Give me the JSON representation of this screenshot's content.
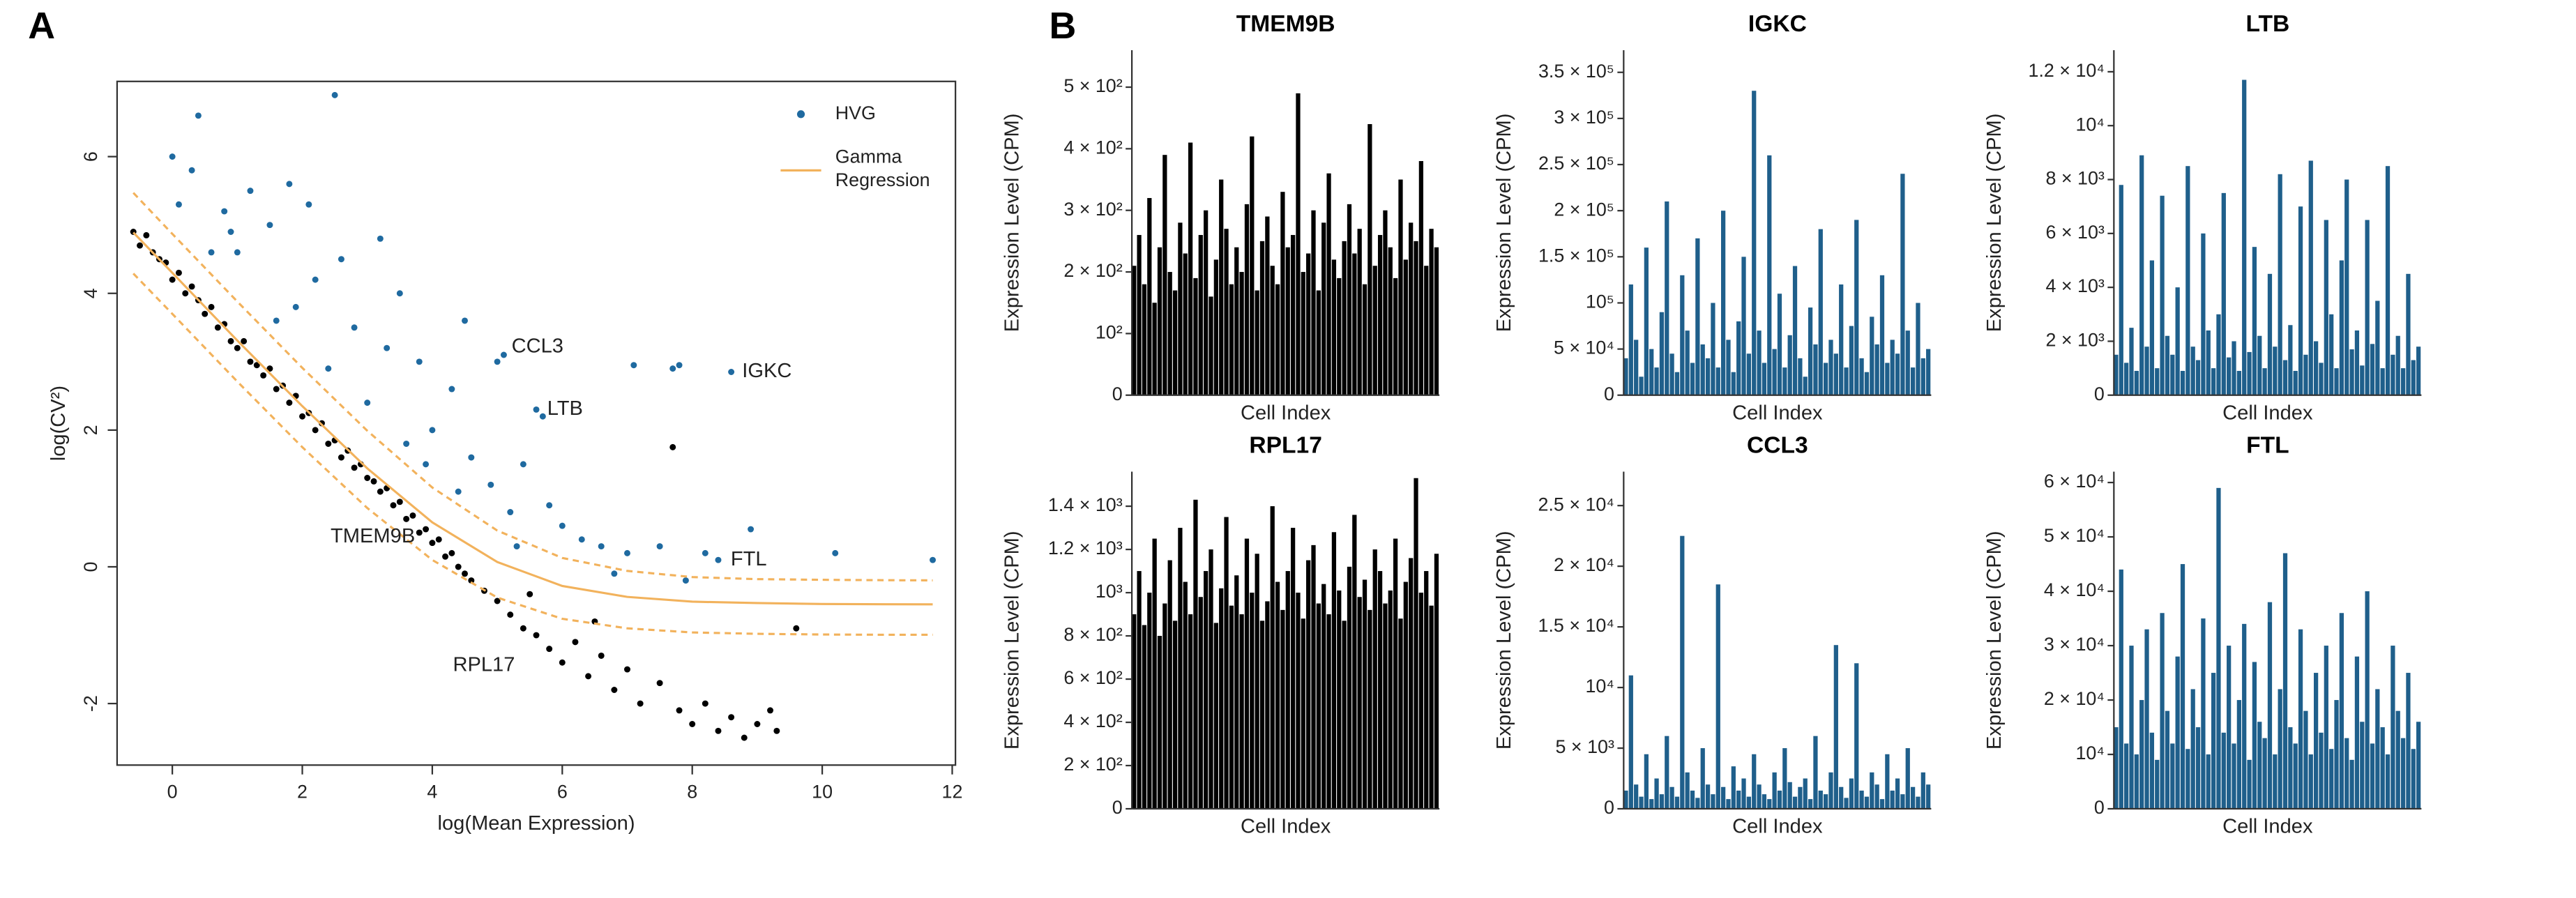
{
  "panels": [
    "A",
    "B"
  ],
  "chart_data": [
    {
      "type": "scatter",
      "xlabel": "log(Mean Expression)",
      "ylabel": "log(CV²)",
      "xlim": [
        -0.85,
        12.05
      ],
      "ylim": [
        -2.9,
        7.1
      ],
      "xticks": [
        0,
        2,
        4,
        6,
        8,
        10,
        12
      ],
      "yticks": [
        -2,
        0,
        2,
        4,
        6
      ],
      "legend": "top-right",
      "series": [
        {
          "name": "HVG",
          "color": "#1f6aa0",
          "x": [
            0.4,
            2.5,
            0.0,
            0.3,
            1.2,
            1.8,
            2.1,
            0.8,
            1.5,
            3.2,
            1.0,
            2.6,
            2.2,
            3.5,
            0.6,
            1.9,
            2.8,
            3.3,
            3.8,
            4.5,
            4.3,
            5.0,
            5.1,
            7.1,
            7.7,
            7.8,
            8.6,
            5.6,
            5.7,
            4.0,
            4.6,
            3.6,
            4.9,
            5.4,
            5.8,
            6.0,
            6.3,
            6.6,
            4.4,
            5.2,
            7.0,
            7.5,
            8.2,
            8.4,
            8.9,
            10.2,
            11.7,
            3.0,
            2.4,
            1.6,
            0.9,
            0.1,
            3.9,
            5.3,
            6.8,
            7.9
          ],
          "y": [
            6.6,
            6.9,
            6.0,
            5.8,
            5.5,
            5.6,
            5.3,
            5.2,
            5.0,
            4.8,
            4.6,
            4.5,
            4.2,
            4.0,
            4.6,
            3.8,
            3.5,
            3.2,
            3.0,
            3.6,
            2.6,
            3.0,
            3.1,
            2.95,
            2.9,
            2.95,
            2.85,
            2.3,
            2.2,
            2.0,
            1.6,
            1.8,
            1.2,
            1.5,
            0.9,
            0.6,
            0.4,
            0.3,
            1.1,
            0.8,
            0.2,
            0.3,
            0.2,
            0.1,
            0.55,
            0.2,
            0.1,
            2.4,
            2.9,
            3.6,
            4.9,
            5.3,
            1.5,
            0.3,
            -0.1,
            -0.2
          ]
        },
        {
          "color": "#000000",
          "x": [
            -0.6,
            -0.5,
            -0.4,
            -0.3,
            -0.2,
            -0.1,
            0,
            0.1,
            0.2,
            0.3,
            0.4,
            0.5,
            0.6,
            0.7,
            0.8,
            0.9,
            1.0,
            1.1,
            1.2,
            1.3,
            1.4,
            1.5,
            1.6,
            1.7,
            1.8,
            1.9,
            2.0,
            2.1,
            2.2,
            2.3,
            2.4,
            2.5,
            2.6,
            2.7,
            2.8,
            2.9,
            3.0,
            3.1,
            3.2,
            3.3,
            3.4,
            3.5,
            3.6,
            3.7,
            3.8,
            3.9,
            4.0,
            4.1,
            4.2,
            4.3,
            4.4,
            4.5,
            4.6,
            4.8,
            5.0,
            5.2,
            5.4,
            5.6,
            5.8,
            6.0,
            6.2,
            6.4,
            6.6,
            6.8,
            7.0,
            7.2,
            7.5,
            7.8,
            8.0,
            8.2,
            8.4,
            8.6,
            8.8,
            9.0,
            9.2,
            9.3,
            7.7,
            9.6,
            5.5,
            6.5
          ],
          "y": [
            4.9,
            4.7,
            4.85,
            4.6,
            4.5,
            4.45,
            4.2,
            4.3,
            4.0,
            4.1,
            3.9,
            3.7,
            3.8,
            3.5,
            3.55,
            3.3,
            3.2,
            3.3,
            3.0,
            2.95,
            2.8,
            2.9,
            2.6,
            2.65,
            2.4,
            2.5,
            2.2,
            2.25,
            2.0,
            2.1,
            1.8,
            1.85,
            1.6,
            1.7,
            1.45,
            1.5,
            1.3,
            1.25,
            1.1,
            1.15,
            0.9,
            0.95,
            0.7,
            0.75,
            0.5,
            0.55,
            0.35,
            0.4,
            0.15,
            0.2,
            0.0,
            -0.1,
            -0.2,
            -0.35,
            -0.5,
            -0.7,
            -0.9,
            -1.0,
            -1.2,
            -1.4,
            -1.1,
            -1.6,
            -1.3,
            -1.8,
            -1.5,
            -2.0,
            -1.7,
            -2.1,
            -2.3,
            -2.0,
            -2.4,
            -2.2,
            -2.5,
            -2.3,
            -2.1,
            -2.4,
            1.75,
            -0.9,
            -0.4,
            -0.8
          ]
        },
        {
          "name": "Gamma Regression",
          "type": "line",
          "color": "#f2b25c",
          "x": [
            -0.6,
            0,
            1,
            2,
            3,
            4,
            5,
            6,
            7,
            8,
            9,
            10,
            11,
            11.7
          ],
          "y": [
            4.89,
            4.3,
            3.31,
            2.35,
            1.44,
            0.65,
            0.07,
            -0.28,
            -0.44,
            -0.51,
            -0.53,
            -0.544,
            -0.548,
            -0.549
          ]
        },
        {
          "type": "line",
          "dashed": true,
          "color": "#f2b25c",
          "x": [
            -0.6,
            0,
            1,
            2,
            3,
            4,
            5,
            6,
            7,
            8,
            9,
            10,
            11,
            11.7
          ],
          "y": [
            5.47,
            4.87,
            3.88,
            2.91,
            1.99,
            1.16,
            0.53,
            0.13,
            -0.06,
            -0.15,
            -0.18,
            -0.19,
            -0.196,
            -0.198
          ]
        },
        {
          "type": "line",
          "dashed": true,
          "color": "#f2b25c",
          "x": [
            -0.6,
            0,
            1,
            2,
            3,
            4,
            5,
            6,
            7,
            8,
            9,
            10,
            11,
            11.7
          ],
          "y": [
            4.29,
            3.7,
            2.71,
            1.75,
            0.86,
            0.1,
            -0.45,
            -0.76,
            -0.9,
            -0.96,
            -0.98,
            -0.99,
            -0.994,
            -0.994
          ]
        }
      ],
      "annotations": [
        {
          "text": "CCL3",
          "x": 5.1,
          "y": 3.1
        },
        {
          "text": "IGKC",
          "x": 8.6,
          "y": 2.85
        },
        {
          "text": "LTB",
          "x": 5.6,
          "y": 2.3
        },
        {
          "text": "FTL",
          "x": 8.4,
          "y": 0.1
        },
        {
          "text": "TMEM9B",
          "x": 4.6,
          "y": 0.3
        },
        {
          "text": "RPL17",
          "x": 5.8,
          "y": -0.9
        }
      ]
    },
    {
      "type": "bar",
      "title": "TMEM9B",
      "xlabel": "Cell Index",
      "ylabel": "Expression Level (CPM)",
      "color": "#000000",
      "ylim": [
        0,
        560
      ],
      "yticks": [
        0,
        {
          "value": 100,
          "label": "10²"
        },
        {
          "value": 200,
          "label": "2 × 10²"
        },
        {
          "value": 300,
          "label": "3 × 10²"
        },
        {
          "value": 400,
          "label": "4 × 10²"
        },
        {
          "value": 500,
          "label": "5 × 10²"
        }
      ],
      "values": [
        210,
        260,
        180,
        320,
        150,
        240,
        390,
        200,
        170,
        280,
        230,
        410,
        190,
        260,
        300,
        160,
        220,
        350,
        270,
        180,
        240,
        200,
        310,
        420,
        170,
        250,
        290,
        210,
        180,
        330,
        240,
        260,
        490,
        200,
        230,
        300,
        170,
        280,
        360,
        220,
        190,
        250,
        310,
        230,
        270,
        180,
        440,
        210,
        260,
        300,
        240,
        190,
        350,
        220,
        280,
        250,
        380,
        210,
        270,
        240
      ]
    },
    {
      "type": "bar",
      "title": "IGKC",
      "xlabel": "Cell Index",
      "ylabel": "Expression Level (CPM)",
      "color": "#1f5f8b",
      "ylim": [
        0,
        374000
      ],
      "yticks": [
        0,
        {
          "value": 50000,
          "label": "5 × 10⁴"
        },
        {
          "value": 100000,
          "label": "10⁵"
        },
        {
          "value": 150000,
          "label": "1.5 × 10⁵"
        },
        {
          "value": 200000,
          "label": "2 × 10⁵"
        },
        {
          "value": 250000,
          "label": "2.5 × 10⁵"
        },
        {
          "value": 300000,
          "label": "3 × 10⁵"
        },
        {
          "value": 350000,
          "label": "3.5 × 10⁵"
        }
      ],
      "values": [
        40000,
        120000,
        60000,
        20000,
        160000,
        50000,
        30000,
        90000,
        210000,
        45000,
        25000,
        130000,
        70000,
        35000,
        170000,
        55000,
        40000,
        100000,
        30000,
        200000,
        60000,
        25000,
        80000,
        150000,
        45000,
        330000,
        70000,
        35000,
        260000,
        50000,
        110000,
        30000,
        65000,
        140000,
        40000,
        20000,
        95000,
        55000,
        180000,
        35000,
        60000,
        45000,
        120000,
        30000,
        75000,
        190000,
        40000,
        25000,
        85000,
        55000,
        130000,
        35000,
        60000,
        45000,
        240000,
        70000,
        30000,
        100000,
        40000,
        50000
      ]
    },
    {
      "type": "bar",
      "title": "LTB",
      "xlabel": "Cell Index",
      "ylabel": "Expression Level (CPM)",
      "color": "#1f5f8b",
      "ylim": [
        0,
        12800
      ],
      "yticks": [
        0,
        {
          "value": 2000,
          "label": "2 × 10³"
        },
        {
          "value": 4000,
          "label": "4 × 10³"
        },
        {
          "value": 6000,
          "label": "6 × 10³"
        },
        {
          "value": 8000,
          "label": "8 × 10³"
        },
        {
          "value": 10000,
          "label": "10⁴"
        },
        {
          "value": 12000,
          "label": "1.2 × 10⁴"
        }
      ],
      "values": [
        1500,
        7800,
        1200,
        2500,
        900,
        8900,
        1800,
        5000,
        1000,
        7400,
        2200,
        1500,
        4000,
        900,
        8500,
        1800,
        1300,
        6000,
        2400,
        1000,
        3000,
        7500,
        1400,
        2000,
        900,
        11700,
        1600,
        5500,
        2200,
        1000,
        4500,
        1800,
        8200,
        1300,
        2600,
        900,
        7000,
        1500,
        8700,
        2000,
        1200,
        6500,
        3000,
        1000,
        5000,
        8000,
        1700,
        2400,
        1100,
        6500,
        1900,
        3500,
        1000,
        8500,
        1500,
        2200,
        1000,
        4500,
        1300,
        1800
      ]
    },
    {
      "type": "bar",
      "title": "RPL17",
      "xlabel": "Cell Index",
      "ylabel": "Expression Level (CPM)",
      "color": "#000000",
      "ylim": [
        0,
        1560
      ],
      "yticks": [
        0,
        {
          "value": 200,
          "label": "2 × 10²"
        },
        {
          "value": 400,
          "label": "4 × 10²"
        },
        {
          "value": 600,
          "label": "6 × 10²"
        },
        {
          "value": 800,
          "label": "8 × 10²"
        },
        {
          "value": 1000,
          "label": "10³"
        },
        {
          "value": 1200,
          "label": "1.2 × 10³"
        },
        {
          "value": 1400,
          "label": "1.4 × 10³"
        }
      ],
      "values": [
        900,
        1100,
        850,
        1000,
        1250,
        800,
        950,
        1150,
        870,
        1300,
        1050,
        900,
        1430,
        980,
        1100,
        1200,
        860,
        1020,
        1350,
        940,
        1080,
        900,
        1250,
        1000,
        1180,
        870,
        960,
        1400,
        1050,
        920,
        1100,
        1300,
        1000,
        880,
        1150,
        1220,
        950,
        1040,
        900,
        1280,
        1010,
        870,
        1120,
        1360,
        980,
        1060,
        920,
        1200,
        1100,
        950,
        1010,
        1250,
        880,
        1050,
        1160,
        1530,
        1000,
        1100,
        940,
        1180
      ]
    },
    {
      "type": "bar",
      "title": "CCL3",
      "xlabel": "Cell Index",
      "ylabel": "Expression Level (CPM)",
      "color": "#1f5f8b",
      "ylim": [
        0,
        27800
      ],
      "yticks": [
        0,
        {
          "value": 5000,
          "label": "5 × 10³"
        },
        {
          "value": 10000,
          "label": "10⁴"
        },
        {
          "value": 15000,
          "label": "1.5 × 10⁴"
        },
        {
          "value": 20000,
          "label": "2 × 10⁴"
        },
        {
          "value": 25000,
          "label": "2.5 × 10⁴"
        }
      ],
      "values": [
        1500,
        11000,
        2000,
        1000,
        4500,
        800,
        2500,
        1200,
        6000,
        1800,
        1000,
        22500,
        3000,
        1500,
        900,
        5000,
        2000,
        1200,
        18500,
        1800,
        800,
        3500,
        1500,
        2500,
        1000,
        4500,
        2000,
        1200,
        800,
        3000,
        1500,
        5000,
        2200,
        1000,
        1800,
        2500,
        800,
        6000,
        1500,
        1200,
        3000,
        13500,
        1800,
        900,
        2500,
        12000,
        1500,
        1000,
        3000,
        2000,
        800,
        4500,
        1500,
        2500,
        1200,
        5000,
        1800,
        1000,
        3000,
        2000
      ]
    },
    {
      "type": "bar",
      "title": "FTL",
      "xlabel": "Cell Index",
      "ylabel": "Expression Level (CPM)",
      "color": "#1f5f8b",
      "ylim": [
        0,
        62000
      ],
      "yticks": [
        0,
        {
          "value": 10000,
          "label": "10⁴"
        },
        {
          "value": 20000,
          "label": "2 × 10⁴"
        },
        {
          "value": 30000,
          "label": "3 × 10⁴"
        },
        {
          "value": 40000,
          "label": "4 × 10⁴"
        },
        {
          "value": 50000,
          "label": "5 × 10⁴"
        },
        {
          "value": 60000,
          "label": "6 × 10⁴"
        }
      ],
      "values": [
        15000,
        44000,
        12000,
        30000,
        10000,
        20000,
        33000,
        14000,
        9000,
        36000,
        18000,
        12000,
        28000,
        45000,
        11000,
        22000,
        15000,
        35000,
        10000,
        25000,
        59000,
        14000,
        30000,
        12000,
        20000,
        34000,
        9000,
        27000,
        16000,
        13000,
        38000,
        10000,
        22000,
        47000,
        15000,
        12000,
        33000,
        18000,
        10000,
        25000,
        14000,
        30000,
        11000,
        20000,
        36000,
        13000,
        9000,
        28000,
        16000,
        40000,
        12000,
        22000,
        15000,
        10000,
        30000,
        18000,
        13000,
        25000,
        11000,
        16000
      ]
    }
  ]
}
